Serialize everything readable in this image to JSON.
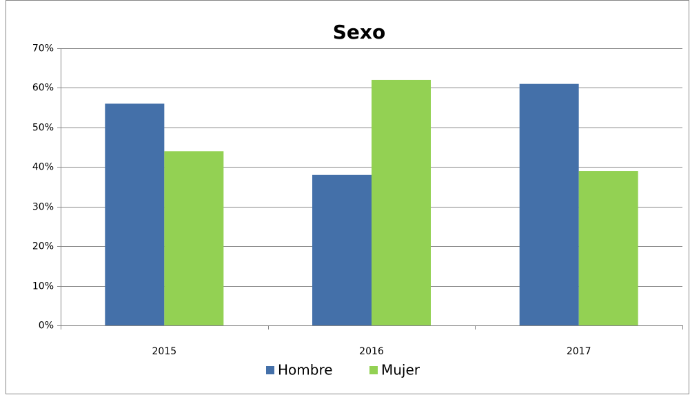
{
  "chart_data": {
    "type": "bar",
    "title": "Sexo",
    "categories": [
      "2015",
      "2016",
      "2017"
    ],
    "series": [
      {
        "name": "Hombre",
        "color": "#4470a9",
        "values": [
          56,
          38,
          61
        ]
      },
      {
        "name": "Mujer",
        "color": "#93d153",
        "values": [
          44,
          62,
          39
        ]
      }
    ],
    "ylim": [
      0,
      70
    ],
    "yticks": [
      {
        "value": 0,
        "label": "0%"
      },
      {
        "value": 10,
        "label": "10%"
      },
      {
        "value": 20,
        "label": "20%"
      },
      {
        "value": 30,
        "label": "30%"
      },
      {
        "value": 40,
        "label": "40%"
      },
      {
        "value": 50,
        "label": "50%"
      },
      {
        "value": 60,
        "label": "60%"
      },
      {
        "value": 70,
        "label": "70%"
      }
    ],
    "grid": true,
    "legend": "bottom"
  }
}
